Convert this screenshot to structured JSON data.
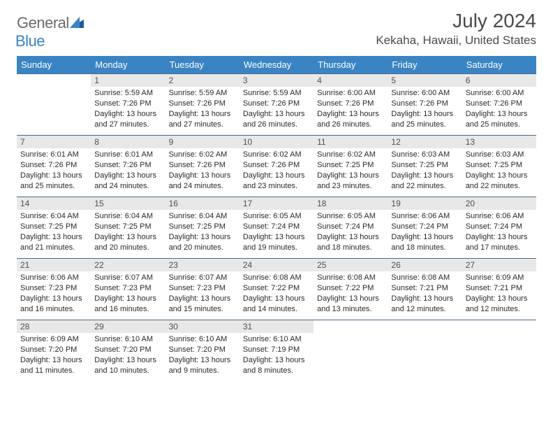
{
  "logo": {
    "text_general": "General",
    "text_blue": "Blue"
  },
  "title": "July 2024",
  "location": "Kekaha, Hawaii, United States",
  "colors": {
    "header_bg": "#3a84c3",
    "header_text": "#ffffff",
    "daynum_bg": "#e8e8e8",
    "cell_border": "#4a6a8a",
    "body_text": "#2a2a2a",
    "logo_gray": "#6a6a6a",
    "logo_blue": "#3a84c3"
  },
  "day_headers": [
    "Sunday",
    "Monday",
    "Tuesday",
    "Wednesday",
    "Thursday",
    "Friday",
    "Saturday"
  ],
  "weeks": [
    [
      {
        "day": "",
        "sunrise": "",
        "sunset": "",
        "daylight": ""
      },
      {
        "day": "1",
        "sunrise": "5:59 AM",
        "sunset": "7:26 PM",
        "daylight": "13 hours and 27 minutes."
      },
      {
        "day": "2",
        "sunrise": "5:59 AM",
        "sunset": "7:26 PM",
        "daylight": "13 hours and 27 minutes."
      },
      {
        "day": "3",
        "sunrise": "5:59 AM",
        "sunset": "7:26 PM",
        "daylight": "13 hours and 26 minutes."
      },
      {
        "day": "4",
        "sunrise": "6:00 AM",
        "sunset": "7:26 PM",
        "daylight": "13 hours and 26 minutes."
      },
      {
        "day": "5",
        "sunrise": "6:00 AM",
        "sunset": "7:26 PM",
        "daylight": "13 hours and 25 minutes."
      },
      {
        "day": "6",
        "sunrise": "6:00 AM",
        "sunset": "7:26 PM",
        "daylight": "13 hours and 25 minutes."
      }
    ],
    [
      {
        "day": "7",
        "sunrise": "6:01 AM",
        "sunset": "7:26 PM",
        "daylight": "13 hours and 25 minutes."
      },
      {
        "day": "8",
        "sunrise": "6:01 AM",
        "sunset": "7:26 PM",
        "daylight": "13 hours and 24 minutes."
      },
      {
        "day": "9",
        "sunrise": "6:02 AM",
        "sunset": "7:26 PM",
        "daylight": "13 hours and 24 minutes."
      },
      {
        "day": "10",
        "sunrise": "6:02 AM",
        "sunset": "7:26 PM",
        "daylight": "13 hours and 23 minutes."
      },
      {
        "day": "11",
        "sunrise": "6:02 AM",
        "sunset": "7:25 PM",
        "daylight": "13 hours and 23 minutes."
      },
      {
        "day": "12",
        "sunrise": "6:03 AM",
        "sunset": "7:25 PM",
        "daylight": "13 hours and 22 minutes."
      },
      {
        "day": "13",
        "sunrise": "6:03 AM",
        "sunset": "7:25 PM",
        "daylight": "13 hours and 22 minutes."
      }
    ],
    [
      {
        "day": "14",
        "sunrise": "6:04 AM",
        "sunset": "7:25 PM",
        "daylight": "13 hours and 21 minutes."
      },
      {
        "day": "15",
        "sunrise": "6:04 AM",
        "sunset": "7:25 PM",
        "daylight": "13 hours and 20 minutes."
      },
      {
        "day": "16",
        "sunrise": "6:04 AM",
        "sunset": "7:25 PM",
        "daylight": "13 hours and 20 minutes."
      },
      {
        "day": "17",
        "sunrise": "6:05 AM",
        "sunset": "7:24 PM",
        "daylight": "13 hours and 19 minutes."
      },
      {
        "day": "18",
        "sunrise": "6:05 AM",
        "sunset": "7:24 PM",
        "daylight": "13 hours and 18 minutes."
      },
      {
        "day": "19",
        "sunrise": "6:06 AM",
        "sunset": "7:24 PM",
        "daylight": "13 hours and 18 minutes."
      },
      {
        "day": "20",
        "sunrise": "6:06 AM",
        "sunset": "7:24 PM",
        "daylight": "13 hours and 17 minutes."
      }
    ],
    [
      {
        "day": "21",
        "sunrise": "6:06 AM",
        "sunset": "7:23 PM",
        "daylight": "13 hours and 16 minutes."
      },
      {
        "day": "22",
        "sunrise": "6:07 AM",
        "sunset": "7:23 PM",
        "daylight": "13 hours and 16 minutes."
      },
      {
        "day": "23",
        "sunrise": "6:07 AM",
        "sunset": "7:23 PM",
        "daylight": "13 hours and 15 minutes."
      },
      {
        "day": "24",
        "sunrise": "6:08 AM",
        "sunset": "7:22 PM",
        "daylight": "13 hours and 14 minutes."
      },
      {
        "day": "25",
        "sunrise": "6:08 AM",
        "sunset": "7:22 PM",
        "daylight": "13 hours and 13 minutes."
      },
      {
        "day": "26",
        "sunrise": "6:08 AM",
        "sunset": "7:21 PM",
        "daylight": "13 hours and 12 minutes."
      },
      {
        "day": "27",
        "sunrise": "6:09 AM",
        "sunset": "7:21 PM",
        "daylight": "13 hours and 12 minutes."
      }
    ],
    [
      {
        "day": "28",
        "sunrise": "6:09 AM",
        "sunset": "7:20 PM",
        "daylight": "13 hours and 11 minutes."
      },
      {
        "day": "29",
        "sunrise": "6:10 AM",
        "sunset": "7:20 PM",
        "daylight": "13 hours and 10 minutes."
      },
      {
        "day": "30",
        "sunrise": "6:10 AM",
        "sunset": "7:20 PM",
        "daylight": "13 hours and 9 minutes."
      },
      {
        "day": "31",
        "sunrise": "6:10 AM",
        "sunset": "7:19 PM",
        "daylight": "13 hours and 8 minutes."
      },
      {
        "day": "",
        "sunrise": "",
        "sunset": "",
        "daylight": ""
      },
      {
        "day": "",
        "sunrise": "",
        "sunset": "",
        "daylight": ""
      },
      {
        "day": "",
        "sunrise": "",
        "sunset": "",
        "daylight": ""
      }
    ]
  ],
  "labels": {
    "sunrise": "Sunrise: ",
    "sunset": "Sunset: ",
    "daylight": "Daylight: "
  }
}
